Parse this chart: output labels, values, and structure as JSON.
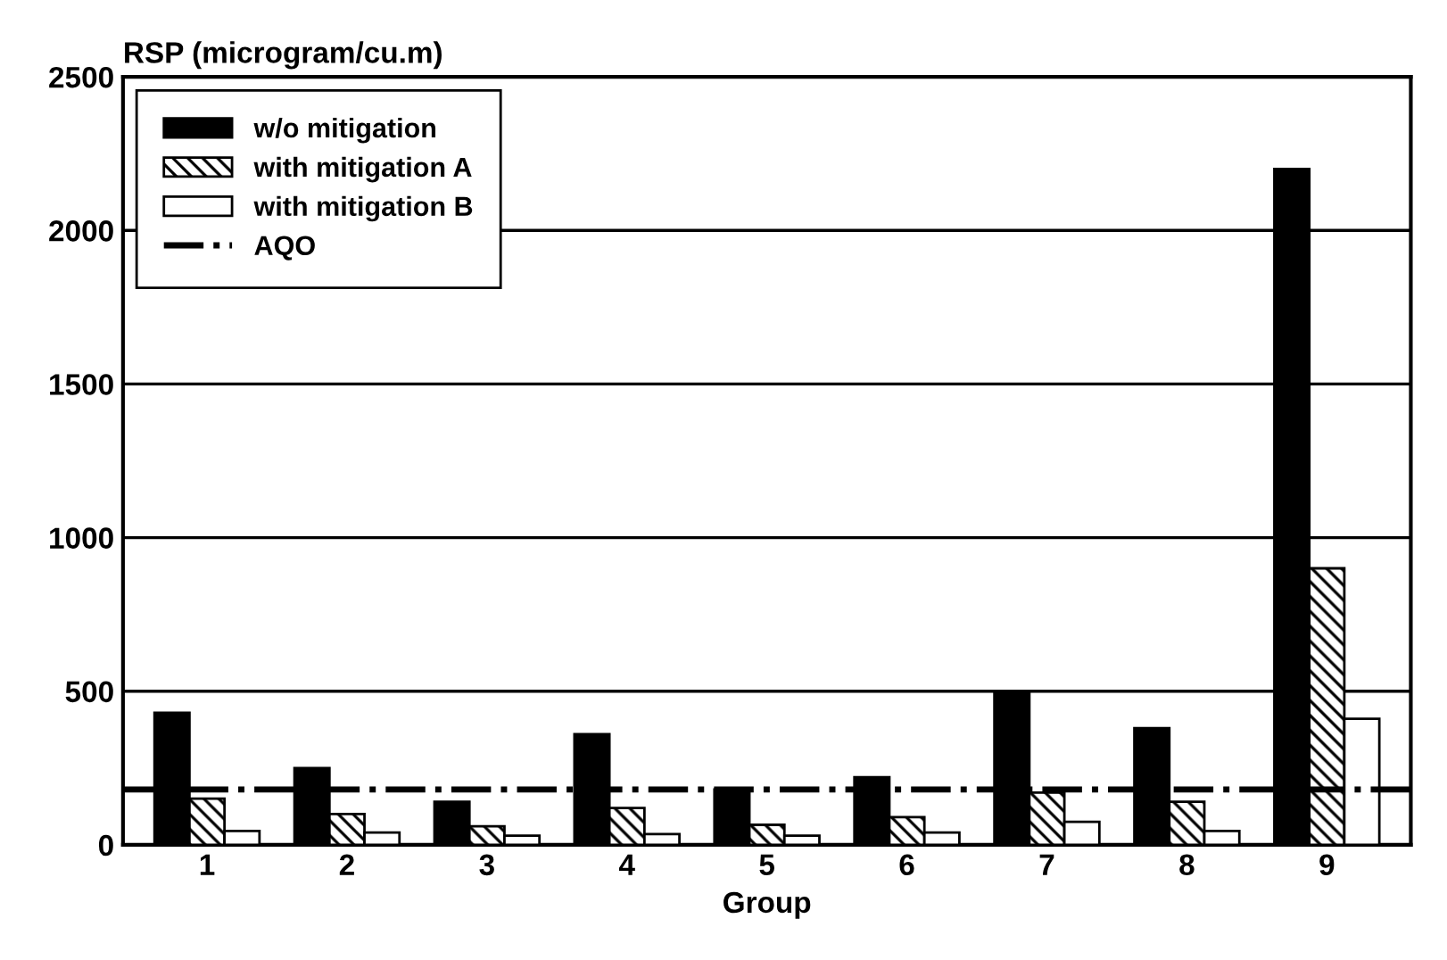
{
  "chart_data": {
    "type": "bar",
    "ylabel": "RSP (microgram/cu.m)",
    "xlabel": "Group",
    "categories": [
      "1",
      "2",
      "3",
      "4",
      "5",
      "6",
      "7",
      "8",
      "9"
    ],
    "series": [
      {
        "name": "w/o mitigation",
        "color": "#000000",
        "values": [
          430,
          250,
          140,
          360,
          180,
          220,
          500,
          380,
          2200
        ]
      },
      {
        "name": "with mitigation A",
        "color": "#000000",
        "values": [
          150,
          100,
          60,
          120,
          65,
          90,
          170,
          140,
          900
        ]
      },
      {
        "name": "with mitigation B",
        "color": "#ffffff",
        "values": [
          45,
          40,
          30,
          35,
          30,
          40,
          75,
          45,
          410
        ]
      }
    ],
    "ref_lines": [
      {
        "axis": "y",
        "value": 180,
        "label": "AQO",
        "color": "#000000",
        "line_style": "dashdot"
      }
    ],
    "ylim": [
      0,
      2500
    ],
    "yticks": [
      0,
      500,
      1000,
      1500,
      2000,
      2500
    ],
    "grid": "y",
    "legend": "top left"
  }
}
